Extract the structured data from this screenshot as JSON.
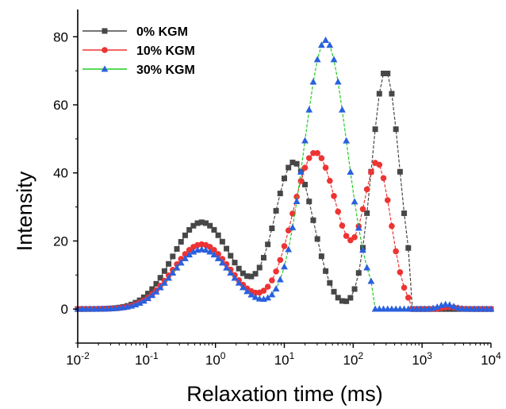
{
  "chart_data": {
    "type": "line",
    "xlabel": "Relaxation time (ms)",
    "ylabel": "Intensity",
    "x_scale": "log",
    "xlim": [
      0.01,
      10000
    ],
    "ylim": [
      -10,
      88
    ],
    "x_ticks": [
      {
        "base": "10",
        "exp": "-2"
      },
      {
        "base": "10",
        "exp": "-1"
      },
      {
        "base": "10",
        "exp": "0"
      },
      {
        "base": "10",
        "exp": "1"
      },
      {
        "base": "10",
        "exp": "2"
      },
      {
        "base": "10",
        "exp": "3"
      },
      {
        "base": "10",
        "exp": "4"
      }
    ],
    "y_ticks": [
      0,
      20,
      40,
      60,
      80
    ],
    "legend_position": "top-left",
    "grid": false,
    "series": [
      {
        "name": "0% KGM",
        "color": "#474747",
        "marker": "square",
        "peaks": [
          {
            "center_log10": -0.2,
            "width": 0.42,
            "height": 25.5
          },
          {
            "center_log10": 1.14,
            "width": 0.28,
            "height": 43
          },
          {
            "center_log10": 2.47,
            "width": 0.2,
            "height": 70
          }
        ],
        "cutoff_log10": 2.82
      },
      {
        "name": "10% KGM",
        "color": "#ee3333",
        "marker": "circle",
        "peaks": [
          {
            "center_log10": -0.2,
            "width": 0.42,
            "height": 19
          },
          {
            "center_log10": 1.45,
            "width": 0.33,
            "height": 46
          },
          {
            "center_log10": 2.35,
            "width": 0.2,
            "height": 42
          }
        ],
        "cutoff_log10": 2.84,
        "bump": {
          "center_log10": 3.4,
          "width": 0.1,
          "height": 0.6
        }
      },
      {
        "name": "30% KGM",
        "color": "#2a60e0",
        "line_color": "#22cc22",
        "marker": "triangle",
        "peaks": [
          {
            "center_log10": -0.2,
            "width": 0.42,
            "height": 17.5
          },
          {
            "center_log10": 1.6,
            "width": 0.31,
            "height": 79
          }
        ],
        "cutoff_log10": 2.28,
        "bump": {
          "center_log10": 3.35,
          "width": 0.1,
          "height": 1.4
        }
      }
    ]
  }
}
